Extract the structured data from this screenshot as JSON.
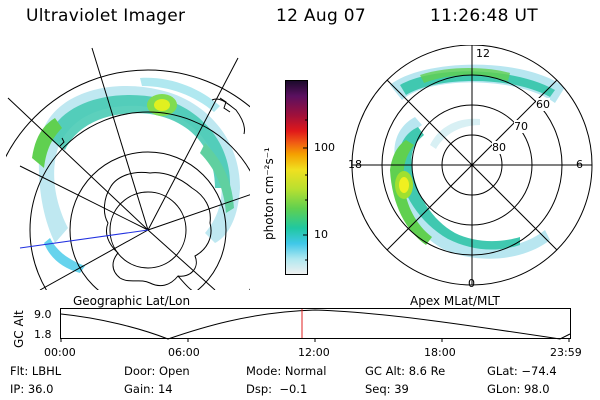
{
  "header": {
    "instrument": "Ultraviolet Imager",
    "date": "12 Aug 07",
    "time": "11:26:48 UT"
  },
  "left_panel": {
    "caption": "Geographic Lat/Lon"
  },
  "right_panel": {
    "caption": "Apex MLat/MLT",
    "mlt_labels": {
      "top": "12",
      "left": "18",
      "right": "6",
      "bottom": "0"
    },
    "lat_labels": [
      "60",
      "70",
      "80"
    ]
  },
  "colorbar": {
    "unit": "photon cm⁻²s⁻¹",
    "scale": "log",
    "tick_labels": [
      "100",
      "10"
    ],
    "colors": [
      "#1a0a2a",
      "#5a1060",
      "#a0103a",
      "#e0181a",
      "#f05a14",
      "#f5a000",
      "#f0e020",
      "#b8e030",
      "#60d050",
      "#20c8a0",
      "#40c8e8",
      "#b0e8f0",
      "#f0f0f0"
    ]
  },
  "altitude_plot": {
    "ylabel": "GC Alt",
    "y_ticks": [
      "9.0",
      "1.8"
    ],
    "x_ticks": [
      "00:00",
      "06:00",
      "12:00",
      "18:00",
      "23:59"
    ]
  },
  "info": {
    "row1": {
      "flt": "Flt: LBHL",
      "door": "Door: Open",
      "mode": "Mode: Normal",
      "gc_alt": "GC Alt: 8.6 Re",
      "glat": "GLat: −74.4"
    },
    "row2": {
      "ip": "IP: 36.0",
      "gain": "Gain: 14",
      "dsp": "Dsp:  −0.1",
      "seq": "Seq: 39",
      "glon": "GLon: 98.0"
    }
  },
  "colors": {
    "aurora_low": "#b8e6f0",
    "aurora_mid": "#40c8b0",
    "aurora_high": "#80dc50",
    "aurora_peak": "#f0f020",
    "marker": "#e02020",
    "meridian": "#2030e0"
  }
}
